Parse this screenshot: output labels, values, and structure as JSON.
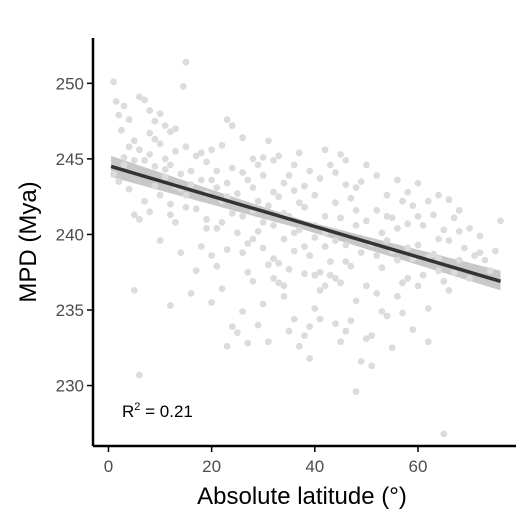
{
  "chart_data": {
    "type": "scatter",
    "title": "",
    "xlabel": "Absolute latitude (°)",
    "ylabel": "MPD (Mya)",
    "xlim": [
      -3,
      79
    ],
    "ylim": [
      226,
      253
    ],
    "x_ticks": [
      0,
      20,
      40,
      60
    ],
    "y_ticks": [
      230,
      235,
      240,
      245,
      250
    ],
    "grid": false,
    "legend": "none",
    "point_color": "#dcdcdc",
    "fit_color": "#333333",
    "band_color": "#c8c8c8",
    "annotation": {
      "prefix": "R",
      "superscript": "2",
      "suffix": " = 0.21"
    },
    "fit_line": {
      "x": [
        0.5,
        76
      ],
      "y": [
        244.5,
        236.9
      ]
    },
    "confidence_band": {
      "x": [
        0.5,
        38,
        76
      ],
      "lower": [
        243.8,
        240.3,
        236.3
      ],
      "upper": [
        245.2,
        240.9,
        237.6
      ]
    },
    "points": [
      [
        1,
        250.1
      ],
      [
        1.5,
        248.8
      ],
      [
        2,
        247.9
      ],
      [
        3,
        248.5
      ],
      [
        2.5,
        246.9
      ],
      [
        4,
        247.6
      ],
      [
        5,
        246.2
      ],
      [
        6,
        249.1
      ],
      [
        7,
        248.9
      ],
      [
        8,
        248.2
      ],
      [
        9,
        247.5
      ],
      [
        10,
        248.0
      ],
      [
        11,
        247.2
      ],
      [
        12,
        246.8
      ],
      [
        13,
        247.0
      ],
      [
        6,
        245.6
      ],
      [
        7,
        244.9
      ],
      [
        8,
        245.3
      ],
      [
        9,
        244.5
      ],
      [
        10,
        246.0
      ],
      [
        11,
        245.0
      ],
      [
        12,
        244.6
      ],
      [
        13,
        245.5
      ],
      [
        14,
        244.0
      ],
      [
        15,
        245.8
      ],
      [
        14.5,
        249.8
      ],
      [
        15,
        251.4
      ],
      [
        1,
        244.0
      ],
      [
        2,
        243.5
      ],
      [
        3,
        244.6
      ],
      [
        4,
        243.0
      ],
      [
        5,
        241.3
      ],
      [
        6,
        241.0
      ],
      [
        7,
        242.2
      ],
      [
        8,
        241.5
      ],
      [
        9,
        243.2
      ],
      [
        10,
        242.6
      ],
      [
        11,
        243.8
      ],
      [
        12,
        242.0
      ],
      [
        13,
        240.8
      ],
      [
        14,
        243.0
      ],
      [
        15,
        241.8
      ],
      [
        16,
        244.2
      ],
      [
        17,
        245.2
      ],
      [
        18,
        243.6
      ],
      [
        19,
        244.8
      ],
      [
        20,
        245.6
      ],
      [
        21,
        244.2
      ],
      [
        22,
        245.9
      ],
      [
        23,
        247.6
      ],
      [
        24,
        247.2
      ],
      [
        18,
        239.2
      ],
      [
        19,
        241.0
      ],
      [
        20,
        238.6
      ],
      [
        21,
        240.4
      ],
      [
        22,
        242.2
      ],
      [
        23,
        243.4
      ],
      [
        24,
        241.4
      ],
      [
        25,
        242.7
      ],
      [
        26,
        244.1
      ],
      [
        27,
        243.6
      ],
      [
        28,
        245.0
      ],
      [
        29,
        242.2
      ],
      [
        30,
        243.9
      ],
      [
        31,
        246.2
      ],
      [
        32,
        244.9
      ],
      [
        25,
        240.1
      ],
      [
        26,
        238.8
      ],
      [
        27,
        239.4
      ],
      [
        28,
        241.6
      ],
      [
        29,
        240.2
      ],
      [
        30,
        239.1
      ],
      [
        31,
        241.9
      ],
      [
        32,
        240.6
      ],
      [
        33,
        242.5
      ],
      [
        34,
        243.4
      ],
      [
        35,
        241.2
      ],
      [
        36,
        244.6
      ],
      [
        37,
        242.1
      ],
      [
        38,
        243.2
      ],
      [
        39,
        244.2
      ],
      [
        40,
        242.6
      ],
      [
        41,
        243.7
      ],
      [
        42,
        241.2
      ],
      [
        43,
        244.6
      ],
      [
        44,
        244.1
      ],
      [
        45,
        245.3
      ],
      [
        46,
        243.3
      ],
      [
        47,
        242.4
      ],
      [
        48,
        241.6
      ],
      [
        49,
        243.5
      ],
      [
        50,
        244.6
      ],
      [
        33,
        238.1
      ],
      [
        34,
        239.7
      ],
      [
        35,
        237.7
      ],
      [
        36,
        238.9
      ],
      [
        37,
        240.3
      ],
      [
        38,
        237.4
      ],
      [
        39,
        238.6
      ],
      [
        40,
        239.8
      ],
      [
        41,
        237.5
      ],
      [
        42,
        240.1
      ],
      [
        43,
        238.2
      ],
      [
        44,
        239.6
      ],
      [
        45,
        241.1
      ],
      [
        46,
        239.3
      ],
      [
        47,
        237.9
      ],
      [
        48,
        240.6
      ],
      [
        49,
        238.8
      ],
      [
        50,
        240.9
      ],
      [
        51,
        239.4
      ],
      [
        52,
        241.6
      ],
      [
        53,
        240.1
      ],
      [
        54,
        242.6
      ],
      [
        55,
        241.1
      ],
      [
        56,
        243.6
      ],
      [
        57,
        242.2
      ],
      [
        58,
        240.7
      ],
      [
        59,
        241.9
      ],
      [
        60,
        243.4
      ],
      [
        61,
        240.6
      ],
      [
        62,
        242.2
      ],
      [
        63,
        241.3
      ],
      [
        64,
        242.6
      ],
      [
        65,
        240.3
      ],
      [
        66,
        239.6
      ],
      [
        67,
        241.1
      ],
      [
        68,
        240.2
      ],
      [
        69,
        239.1
      ],
      [
        70,
        240.4
      ],
      [
        71,
        238.6
      ],
      [
        72,
        239.9
      ],
      [
        73,
        238.3
      ],
      [
        74,
        237.6
      ],
      [
        75,
        238.9
      ],
      [
        76,
        240.9
      ],
      [
        20,
        235.5
      ],
      [
        22,
        236.4
      ],
      [
        24,
        233.9
      ],
      [
        26,
        234.9
      ],
      [
        28,
        236.9
      ],
      [
        30,
        235.4
      ],
      [
        32,
        237.1
      ],
      [
        34,
        235.9
      ],
      [
        36,
        234.4
      ],
      [
        38,
        233.3
      ],
      [
        40,
        235.1
      ],
      [
        42,
        236.6
      ],
      [
        44,
        234.1
      ],
      [
        46,
        233.6
      ],
      [
        48,
        235.6
      ],
      [
        50,
        233.1
      ],
      [
        52,
        236.1
      ],
      [
        54,
        234.6
      ],
      [
        56,
        235.9
      ],
      [
        58,
        237.1
      ],
      [
        60,
        236.6
      ],
      [
        62,
        235.1
      ],
      [
        64,
        237.6
      ],
      [
        66,
        236.3
      ],
      [
        25,
        233.5
      ],
      [
        27,
        232.8
      ],
      [
        29,
        234.0
      ],
      [
        35,
        233.6
      ],
      [
        37,
        232.6
      ],
      [
        39,
        233.9
      ],
      [
        45,
        232.9
      ],
      [
        47,
        234.3
      ],
      [
        49,
        231.6
      ],
      [
        51,
        233.3
      ],
      [
        21,
        237.9
      ],
      [
        23,
        239.0
      ],
      [
        27,
        237.5
      ],
      [
        31,
        238.0
      ],
      [
        33,
        236.8
      ],
      [
        41,
        236.3
      ],
      [
        43,
        237.3
      ],
      [
        53,
        237.8
      ],
      [
        55,
        238.9
      ],
      [
        57,
        236.8
      ],
      [
        59,
        238.4
      ],
      [
        61,
        237.3
      ],
      [
        63,
        238.7
      ],
      [
        65,
        236.9
      ],
      [
        67,
        237.5
      ],
      [
        5,
        236.3
      ],
      [
        6,
        230.7
      ],
      [
        12,
        235.3
      ],
      [
        16,
        236.1
      ],
      [
        17,
        237.6
      ],
      [
        19,
        242.7
      ],
      [
        21,
        243.1
      ],
      [
        23,
        242.5
      ],
      [
        29,
        244.6
      ],
      [
        33,
        245.2
      ],
      [
        35,
        243.9
      ],
      [
        37,
        245.4
      ],
      [
        42,
        245.6
      ],
      [
        46,
        244.9
      ],
      [
        48,
        243.1
      ],
      [
        52,
        243.9
      ],
      [
        54,
        241.2
      ],
      [
        56,
        240.4
      ],
      [
        58,
        242.8
      ],
      [
        60,
        239.3
      ],
      [
        62,
        238.5
      ],
      [
        64,
        239.7
      ],
      [
        66,
        242.3
      ],
      [
        68,
        238.3
      ],
      [
        70,
        237.1
      ],
      [
        72,
        238.8
      ],
      [
        62,
        232.9
      ],
      [
        65,
        226.8
      ],
      [
        48,
        229.6
      ],
      [
        15,
        242.6
      ],
      [
        17,
        241.7
      ],
      [
        19,
        240.4
      ],
      [
        10,
        239.6
      ],
      [
        12,
        241.3
      ],
      [
        14,
        238.8
      ],
      [
        26,
        246.4
      ],
      [
        28,
        243.1
      ],
      [
        30,
        245.1
      ],
      [
        32,
        242.8
      ],
      [
        34,
        241.4
      ],
      [
        36,
        242.9
      ],
      [
        38,
        241.8
      ],
      [
        40,
        240.6
      ],
      [
        42,
        239.2
      ],
      [
        44,
        242.1
      ],
      [
        3,
        245.1
      ],
      [
        4,
        245.8
      ],
      [
        5,
        244.9
      ],
      [
        8,
        246.7
      ],
      [
        9,
        246.3
      ],
      [
        11,
        244.3
      ],
      [
        13,
        243.2
      ],
      [
        16,
        243.3
      ],
      [
        18,
        245.4
      ],
      [
        20,
        243.6
      ],
      [
        22,
        240.8
      ],
      [
        24,
        244.4
      ],
      [
        26,
        241.2
      ],
      [
        28,
        239.7
      ],
      [
        30,
        240.8
      ],
      [
        32,
        238.4
      ],
      [
        34,
        236.6
      ],
      [
        36,
        240.1
      ],
      [
        38,
        239.2
      ],
      [
        40,
        237.3
      ],
      [
        44,
        237.1
      ],
      [
        46,
        238.2
      ],
      [
        50,
        236.6
      ],
      [
        52,
        238.6
      ],
      [
        54,
        239.6
      ],
      [
        56,
        238.3
      ],
      [
        58,
        239.1
      ],
      [
        60,
        241.2
      ],
      [
        64,
        238.4
      ],
      [
        68,
        241.6
      ],
      [
        23,
        232.6
      ],
      [
        31,
        232.9
      ],
      [
        41,
        234.4
      ],
      [
        51,
        231.3
      ],
      [
        55,
        232.5
      ],
      [
        57,
        234.8
      ],
      [
        59,
        233.7
      ],
      [
        39,
        231.8
      ],
      [
        45,
        236.8
      ],
      [
        53,
        234.9
      ]
    ]
  }
}
